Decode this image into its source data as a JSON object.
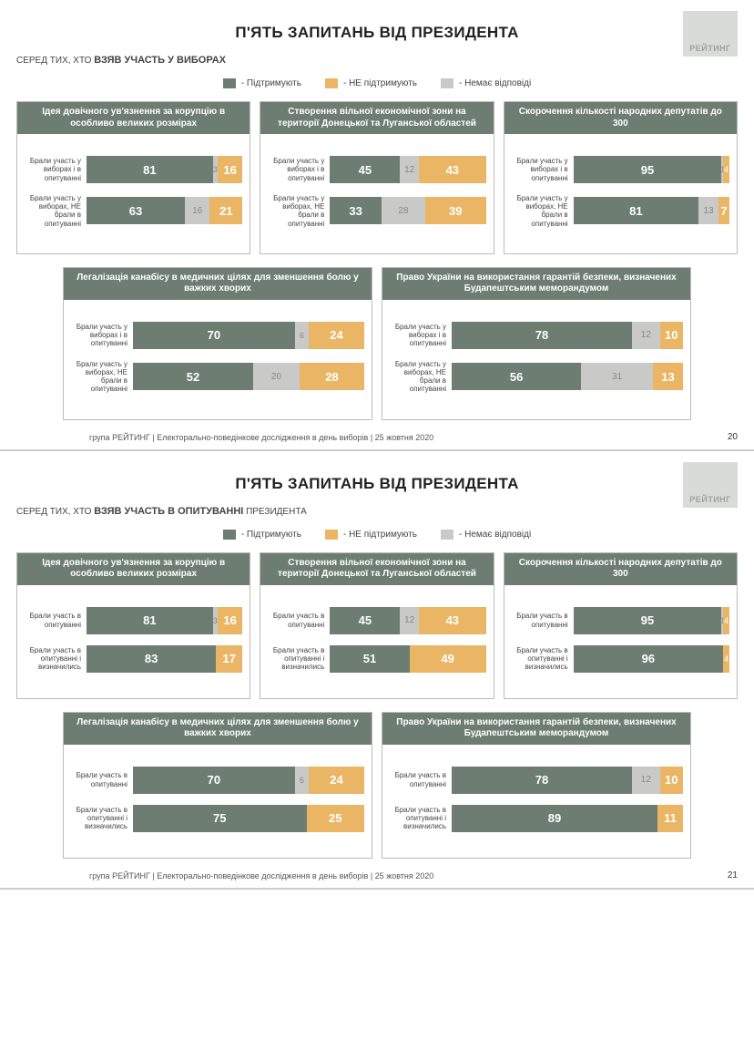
{
  "colors": {
    "support": "#6d7d72",
    "neutral": "#c9cac7",
    "oppose": "#eab666",
    "header": "#6d7d72"
  },
  "legend": {
    "support": "- Підтримують",
    "oppose": "- НЕ підтримують",
    "neutral": "- Немає відповіді"
  },
  "logo": "РЕЙТИНГ",
  "footer": "група РЕЙТИНГ | Електорально-поведінкове дослідження в день виборів | 25 жовтня 2020",
  "slide1": {
    "title": "П'ЯТЬ ЗАПИТАНЬ ВІД ПРЕЗИДЕНТА",
    "subtitle_prefix": "СЕРЕД ТИХ, ХТО ",
    "subtitle_bold": "ВЗЯВ УЧАСТЬ У ВИБОРАХ",
    "subtitle_suffix": "",
    "page": "20",
    "row1_labels": {
      "a": "Брали участь у виборах і в опитуванні",
      "b": "Брали участь у виборах, НЕ брали в опитуванні"
    },
    "charts_top": [
      {
        "title": "Ідея довічного ув'язнення за корупцію в особливо великих розмірах",
        "rows": [
          {
            "s": 81,
            "n": 3,
            "o": 16
          },
          {
            "s": 63,
            "n": 16,
            "o": 21
          }
        ]
      },
      {
        "title": "Створення вільної економічної зони на території Донецької та Луганської областей",
        "rows": [
          {
            "s": 45,
            "n": 12,
            "o": 43
          },
          {
            "s": 33,
            "n": 28,
            "o": 39
          }
        ]
      },
      {
        "title": "Скорочення кількості народних депутатів до 300",
        "rows": [
          {
            "s": 95,
            "n": 1,
            "o": 4
          },
          {
            "s": 81,
            "n": 13,
            "o": 7
          }
        ]
      }
    ],
    "charts_bottom": [
      {
        "title": "Легалізація канабісу в медичних цілях для зменшення болю у важких хворих",
        "rows": [
          {
            "s": 70,
            "n": 6,
            "o": 24
          },
          {
            "s": 52,
            "n": 20,
            "o": 28
          }
        ]
      },
      {
        "title": "Право України на використання гарантій безпеки, визначених Будапештським меморандумом",
        "rows": [
          {
            "s": 78,
            "n": 12,
            "o": 10
          },
          {
            "s": 56,
            "n": 31,
            "o": 13
          }
        ]
      }
    ]
  },
  "slide2": {
    "title": "П'ЯТЬ ЗАПИТАНЬ ВІД ПРЕЗИДЕНТА",
    "subtitle_prefix": "СЕРЕД ТИХ, ХТО ",
    "subtitle_bold": "ВЗЯВ УЧАСТЬ В ОПИТУВАННІ",
    "subtitle_suffix": " ПРЕЗИДЕНТА",
    "page": "21",
    "row1_labels": {
      "a": "Брали участь в опитуванні",
      "b": "Брали участь в опитуванні і визначились"
    },
    "charts_top": [
      {
        "title": "Ідея довічного ув'язнення за корупцію в особливо великих розмірах",
        "rows": [
          {
            "s": 81,
            "n": 3,
            "o": 16
          },
          {
            "s": 83,
            "n": 0,
            "o": 17
          }
        ]
      },
      {
        "title": "Створення вільної економічної зони на території Донецької та Луганської областей",
        "rows": [
          {
            "s": 45,
            "n": 12,
            "o": 43
          },
          {
            "s": 51,
            "n": 0,
            "o": 49
          }
        ]
      },
      {
        "title": "Скорочення кількості народних депутатів до 300",
        "rows": [
          {
            "s": 95,
            "n": 1,
            "o": 4
          },
          {
            "s": 96,
            "n": 0,
            "o": 4
          }
        ]
      }
    ],
    "charts_bottom": [
      {
        "title": "Легалізація канабісу в медичних цілях для зменшення болю у важких хворих",
        "rows": [
          {
            "s": 70,
            "n": 6,
            "o": 24
          },
          {
            "s": 75,
            "n": 0,
            "o": 25
          }
        ]
      },
      {
        "title": "Право України на використання гарантій безпеки, визначених Будапештським меморандумом",
        "rows": [
          {
            "s": 78,
            "n": 12,
            "o": 10
          },
          {
            "s": 89,
            "n": 0,
            "o": 11
          }
        ]
      }
    ]
  }
}
